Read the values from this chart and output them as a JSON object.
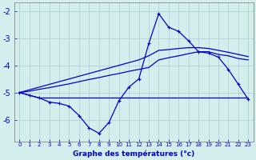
{
  "xlabel": "Graphe des températures (°c)",
  "background_color": "#d4eeed",
  "grid_color": "#aacfcf",
  "line_color": "#0000cc",
  "hours": [
    0,
    1,
    2,
    3,
    4,
    5,
    6,
    7,
    8,
    9,
    10,
    11,
    12,
    13,
    14,
    15,
    16,
    17,
    18,
    19,
    20,
    21,
    22,
    23
  ],
  "temp_main": [
    -5.0,
    -5.1,
    -5.2,
    -5.35,
    -5.4,
    -5.5,
    -5.85,
    -6.3,
    -6.5,
    -6.1,
    -5.3,
    -4.8,
    -4.5,
    -3.2,
    -2.1,
    -2.6,
    -2.75,
    -3.1,
    -3.5,
    -3.55,
    -3.7,
    -4.15,
    -4.7,
    -5.25
  ],
  "temp_flat": [
    -5.0,
    -5.1,
    -5.2,
    -5.2,
    -5.2,
    -5.2,
    -5.2,
    -5.2,
    -5.2,
    -5.2,
    -5.2,
    -5.2,
    -5.2,
    -5.2,
    -5.2,
    -5.2,
    -5.2,
    -5.2,
    -5.2,
    -5.2,
    -5.2,
    -5.2,
    -5.2,
    -5.2
  ],
  "temp_trend1": [
    -5.0,
    -4.95,
    -4.88,
    -4.82,
    -4.75,
    -4.68,
    -4.6,
    -4.52,
    -4.45,
    -4.37,
    -4.3,
    -4.22,
    -4.15,
    -4.08,
    -3.8,
    -3.72,
    -3.65,
    -3.57,
    -3.5,
    -3.5,
    -3.6,
    -3.65,
    -3.75,
    -3.8
  ],
  "temp_trend2": [
    -5.0,
    -4.9,
    -4.8,
    -4.7,
    -4.6,
    -4.5,
    -4.4,
    -4.3,
    -4.2,
    -4.1,
    -4.0,
    -3.9,
    -3.8,
    -3.65,
    -3.45,
    -3.42,
    -3.38,
    -3.35,
    -3.35,
    -3.38,
    -3.45,
    -3.52,
    -3.6,
    -3.68
  ],
  "ylim": [
    -6.8,
    -1.7
  ],
  "yticks": [
    -6,
    -5,
    -4,
    -3,
    -2
  ],
  "xlim": [
    -0.5,
    23.5
  ]
}
